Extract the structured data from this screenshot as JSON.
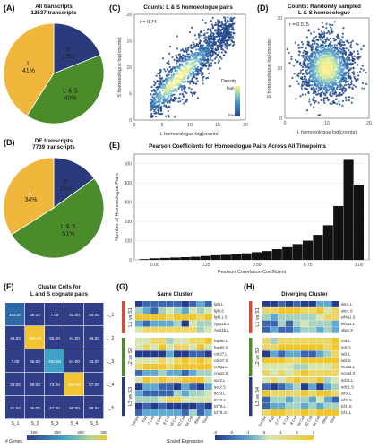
{
  "panels": {
    "A": {
      "letter": "(A)",
      "title_lines": [
        "All transcripts",
        "12537 transcripts"
      ],
      "slices": [
        {
          "label": "S",
          "value": 19,
          "pct": "19%",
          "color": "#2b3a7a"
        },
        {
          "label": "L & S",
          "value": 40,
          "pct": "40%",
          "color": "#4a8c2a"
        },
        {
          "label": "L",
          "value": 41,
          "pct": "41%",
          "color": "#f0b73c"
        }
      ]
    },
    "B": {
      "letter": "(B)",
      "title_lines": [
        "DE transcripts",
        "7739 transcripts"
      ],
      "slices": [
        {
          "label": "S",
          "value": 15,
          "pct": "15%",
          "color": "#2b3a7a"
        },
        {
          "label": "L & S",
          "value": 51,
          "pct": "51%",
          "color": "#4a8c2a"
        },
        {
          "label": "L",
          "value": 34,
          "pct": "34%",
          "color": "#f0b73c"
        }
      ]
    },
    "C": {
      "letter": "(C)",
      "title": "Counts: L & S homoeologue pairs",
      "r_label": "r = 0.74",
      "xlabel": "L homoeologue log(counts)",
      "ylabel": "S homoeologue log(counts)",
      "xticks": [
        "0",
        "5",
        "10",
        "15",
        "20"
      ],
      "yticks": [
        "0",
        "5",
        "10",
        "15",
        "20"
      ],
      "legend_title": "Density",
      "legend_high": "high",
      "legend_low": "low"
    },
    "D": {
      "letter": "(D)",
      "title_lines": [
        "Counts: Randomly sampled",
        "L & S homoeologue"
      ],
      "r_label": "r = 0.015",
      "xlabel": "L homoeologue log(counts)",
      "ylabel": "S homoeologue log(counts)",
      "xticks": [
        "0",
        "10",
        "20"
      ],
      "yticks": [
        "0",
        "10",
        "20"
      ]
    },
    "E": {
      "letter": "(E)",
      "title": "Pearson Coefficients for Homoeologue Pairs Across All Timepoints",
      "xlabel": "Pearson Correlation Coefficient",
      "ylabel": "Number of Homoeologue Pairs",
      "xticks": [
        "0.00",
        "0.25",
        "0.50",
        "0.75",
        "1.00"
      ],
      "yticks": [
        "0",
        "100",
        "200",
        "300",
        "400",
        "500"
      ]
    },
    "F": {
      "letter": "(F)",
      "title_lines": [
        "Cluster Cells for",
        "L and S cognate pairs"
      ],
      "row_labels": [
        "L_1",
        "L_2",
        "L_3",
        "L_4",
        "L_5"
      ],
      "col_labels": [
        "S_1",
        "S_2",
        "S_3",
        "S_4",
        "S_5"
      ],
      "legend_title": "# Genes",
      "legend_ticks": [
        "100",
        "200",
        "300",
        "400"
      ]
    },
    "G": {
      "letter": "(G)",
      "title": "Same Cluster",
      "blocks": [
        "L1 vs S1",
        "L2 vs S2",
        "L3 vs S3"
      ],
      "genes": [
        [
          "fgf4.L",
          "fgf4.S",
          "fgf4.1.S",
          "zyg11b.S",
          "zyg11b.L"
        ],
        [
          "hsp90.L",
          "hsp90.S",
          "cdc27.L",
          "cdc27.S",
          "ccng1.L",
          "ccng1.S"
        ],
        [
          "sox2.L",
          "sox2.S",
          "ttc23.L",
          "ttc23.S",
          "tcf7l1.L",
          "tcf7l1.S"
        ]
      ],
      "col_labels": [
        "Oocyte",
        "Egg",
        "2 Cell",
        "4 Cell",
        "8 Cell",
        "16 Cell",
        "32 Cell",
        "64 Cell",
        "Blast",
        "Gast"
      ]
    },
    "H": {
      "letter": "(H)",
      "title": "Diverging Cluster",
      "blocks": [
        "L1 vs S1",
        "L2 vs S3",
        "L3 vs S4"
      ],
      "genes": [
        [
          "sim1.L",
          "sim1.S",
          "eif4a1.S",
          "eif4a1.L",
          "xbp1.S"
        ],
        [
          "rbl1.L",
          "rbl1.S",
          "tal1.L",
          "tal1.S",
          "ncoa4.L",
          "ncoa4.S"
        ],
        [
          "scfd1.L",
          "scfd1.S",
          "eif3f.L",
          "eif3f.S",
          "tcf1l.S",
          "tcf1l.L"
        ]
      ],
      "col_labels": [
        "Oocyte",
        "Egg",
        "2 Cell",
        "4 Cell",
        "8 Cell",
        "16 Cell",
        "32 Cell",
        "64 Cell",
        "Blast",
        "Gast"
      ],
      "legend_title": "Scaled Expression",
      "legend_ticks": [
        "-3",
        "-2",
        "-1",
        "0",
        "1",
        "2",
        "3"
      ]
    }
  },
  "chart_data": [
    {
      "type": "pie",
      "title": "All transcripts",
      "subtitle": "12537 transcripts",
      "categories": [
        "S",
        "L & S",
        "L"
      ],
      "values": [
        19,
        40,
        41
      ]
    },
    {
      "type": "pie",
      "title": "DE transcripts",
      "subtitle": "7739 transcripts",
      "categories": [
        "S",
        "L & S",
        "L"
      ],
      "values": [
        15,
        51,
        34
      ]
    },
    {
      "type": "scatter",
      "title": "Counts: L & S homoeologue pairs",
      "xlabel": "L homoeologue log(counts)",
      "ylabel": "S homoeologue log(counts)",
      "xlim": [
        0,
        20
      ],
      "ylim": [
        0,
        20
      ],
      "r": 0.74
    },
    {
      "type": "scatter",
      "title": "Counts: Randomly sampled L & S homoeologue",
      "xlabel": "L homoeologue log(counts)",
      "ylabel": "S homoeologue log(counts)",
      "xlim": [
        0,
        20
      ],
      "ylim": [
        0,
        20
      ],
      "r": 0.015
    },
    {
      "type": "bar",
      "title": "Pearson Coefficients for Homoeologue Pairs Across All Timepoints",
      "xlabel": "Pearson Correlation Coefficient",
      "ylabel": "Number of Homoeologue Pairs",
      "x": [
        -0.05,
        0.0,
        0.05,
        0.1,
        0.15,
        0.2,
        0.25,
        0.3,
        0.35,
        0.4,
        0.45,
        0.5,
        0.55,
        0.6,
        0.65,
        0.7,
        0.75,
        0.8,
        0.85,
        0.9,
        0.95,
        1.0
      ],
      "values": [
        4,
        8,
        10,
        12,
        14,
        16,
        20,
        24,
        26,
        30,
        34,
        40,
        46,
        56,
        66,
        82,
        100,
        130,
        180,
        280,
        520,
        390
      ],
      "xlim": [
        -0.1,
        1.05
      ],
      "ylim": [
        0,
        550
      ]
    },
    {
      "type": "heatmap",
      "title": "Cluster Cells for L and S cognate pairs",
      "rows": [
        "L_1",
        "L_2",
        "L_3",
        "L_4",
        "L_5"
      ],
      "cols": [
        "S_1",
        "S_2",
        "S_3",
        "S_4",
        "S_5"
      ],
      "values": [
        [
          "163.00",
          "55.00",
          "7.00",
          "41.00",
          "50.00"
        ],
        [
          "46.00",
          "450.00",
          "50.00",
          "44.00",
          "46.00"
        ],
        [
          "7.00",
          "56.00",
          "260.00",
          "64.00",
          "43.00"
        ],
        [
          "29.00",
          "49.00",
          "73.00",
          "388.00",
          "57.00"
        ],
        [
          "41.00",
          "36.00",
          "47.00",
          "80.00",
          "98.00"
        ]
      ]
    }
  ]
}
